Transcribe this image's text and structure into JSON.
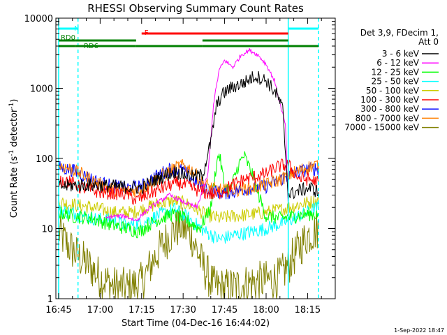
{
  "chart_data": {
    "type": "line",
    "title": "RHESSI Observing Summary Count Rates",
    "xlabel": "Start Time (04-Dec-16 16:44:02)",
    "ylabel": "Count Rate (s⁻¹ detector⁻¹)",
    "ylabel_parts": {
      "base": "Count Rate (s",
      "exp1": "-1",
      "mid": " detector",
      "exp2": "-1",
      "end": ")"
    },
    "y_scale": "log",
    "ylim": [
      1,
      10000
    ],
    "xlim": [
      "16:44",
      "18:25"
    ],
    "x_ticks": [
      "16:45",
      "17:00",
      "17:15",
      "17:30",
      "17:45",
      "18:00",
      "18:15"
    ],
    "y_ticks": [
      "1",
      "10",
      "100",
      "1000",
      "10000"
    ],
    "legend_header": [
      "Det 3,9, FDecim 1,",
      "Att 0"
    ],
    "legend_position": "right",
    "timestamp": "1-Sep-2022 18:47",
    "series": [
      {
        "name": "3 - 6 keV",
        "color": "#000000",
        "points": [
          [
            "16:45",
            40
          ],
          [
            "16:55",
            42
          ],
          [
            "17:05",
            40
          ],
          [
            "17:15",
            38
          ],
          [
            "17:20",
            50
          ],
          [
            "17:27",
            65
          ],
          [
            "17:33",
            55
          ],
          [
            "17:37",
            58
          ],
          [
            "17:40",
            170
          ],
          [
            "17:42",
            550
          ],
          [
            "17:44",
            800
          ],
          [
            "17:47",
            1000
          ],
          [
            "17:52",
            1200
          ],
          [
            "17:56",
            1500
          ],
          [
            "18:00",
            1300
          ],
          [
            "18:04",
            800
          ],
          [
            "18:06",
            500
          ],
          [
            "18:08",
            30
          ],
          [
            "18:12",
            35
          ],
          [
            "18:16",
            38
          ],
          [
            "18:19",
            33
          ]
        ]
      },
      {
        "name": "6 - 12 keV",
        "color": "#ff00ff",
        "points": [
          [
            "17:02",
            14
          ],
          [
            "17:05",
            15
          ],
          [
            "17:09",
            15
          ],
          [
            "17:13",
            13
          ],
          [
            "17:18",
            20
          ],
          [
            "17:25",
            30
          ],
          [
            "17:30",
            24
          ],
          [
            "17:35",
            20
          ],
          [
            "17:39",
            60
          ],
          [
            "17:41",
            600
          ],
          [
            "17:43",
            1800
          ],
          [
            "17:45",
            2500
          ],
          [
            "17:48",
            2000
          ],
          [
            "17:51",
            3000
          ],
          [
            "17:54",
            3500
          ],
          [
            "17:57",
            3000
          ],
          [
            "18:00",
            2200
          ],
          [
            "18:03",
            1300
          ],
          [
            "18:05",
            600
          ],
          [
            "18:07",
            300
          ],
          [
            "18:08",
            20
          ]
        ]
      },
      {
        "name": "12 - 25 keV",
        "color": "#00ff00",
        "points": [
          [
            "16:45",
            17
          ],
          [
            "16:50",
            15
          ],
          [
            "16:57",
            14
          ],
          [
            "17:05",
            11
          ],
          [
            "17:10",
            10
          ],
          [
            "17:14",
            9
          ],
          [
            "17:20",
            13
          ],
          [
            "17:26",
            16
          ],
          [
            "17:30",
            14
          ],
          [
            "17:36",
            10
          ],
          [
            "17:40",
            20
          ],
          [
            "17:42",
            80
          ],
          [
            "17:43",
            120
          ],
          [
            "17:45",
            40
          ],
          [
            "17:47",
            35
          ],
          [
            "17:50",
            80
          ],
          [
            "17:52",
            110
          ],
          [
            "17:55",
            60
          ],
          [
            "17:58",
            25
          ],
          [
            "18:00",
            15
          ],
          [
            "18:05",
            14
          ],
          [
            "18:10",
            15
          ],
          [
            "18:15",
            16
          ],
          [
            "18:19",
            16
          ]
        ]
      },
      {
        "name": "25 - 50 keV",
        "color": "#00ffff",
        "points": [
          [
            "16:45",
            18
          ],
          [
            "16:50",
            17
          ],
          [
            "16:57",
            14
          ],
          [
            "17:05",
            13
          ],
          [
            "17:10",
            11
          ],
          [
            "17:15",
            12
          ],
          [
            "17:22",
            16
          ],
          [
            "17:27",
            19
          ],
          [
            "17:32",
            14
          ],
          [
            "17:38",
            9
          ],
          [
            "17:43",
            7
          ],
          [
            "17:48",
            8
          ],
          [
            "17:55",
            9
          ],
          [
            "18:00",
            10
          ],
          [
            "18:06",
            12
          ],
          [
            "18:12",
            15
          ],
          [
            "18:16",
            18
          ],
          [
            "18:19",
            20
          ]
        ]
      },
      {
        "name": "50 - 100 keV",
        "color": "#cccc00",
        "points": [
          [
            "16:45",
            24
          ],
          [
            "16:50",
            22
          ],
          [
            "16:57",
            20
          ],
          [
            "17:05",
            17
          ],
          [
            "17:12",
            17
          ],
          [
            "17:20",
            22
          ],
          [
            "17:27",
            25
          ],
          [
            "17:32",
            22
          ],
          [
            "17:38",
            16
          ],
          [
            "17:43",
            14
          ],
          [
            "17:48",
            15
          ],
          [
            "17:55",
            16
          ],
          [
            "18:00",
            17
          ],
          [
            "18:06",
            19
          ],
          [
            "18:12",
            22
          ],
          [
            "18:16",
            24
          ],
          [
            "18:19",
            25
          ]
        ]
      },
      {
        "name": "100 - 300 keV",
        "color": "#ff0000",
        "points": [
          [
            "16:45",
            50
          ],
          [
            "16:48",
            48
          ],
          [
            "16:52",
            40
          ],
          [
            "16:56",
            36
          ],
          [
            "17:00",
            33
          ],
          [
            "17:05",
            32
          ],
          [
            "17:10",
            31
          ],
          [
            "17:13",
            25
          ],
          [
            "17:18",
            32
          ],
          [
            "17:24",
            40
          ],
          [
            "17:28",
            45
          ],
          [
            "17:32",
            40
          ],
          [
            "17:37",
            33
          ],
          [
            "17:42",
            30
          ],
          [
            "17:48",
            42
          ],
          [
            "17:52",
            50
          ],
          [
            "17:56",
            55
          ],
          [
            "18:00",
            60
          ],
          [
            "18:03",
            72
          ],
          [
            "18:06",
            80
          ],
          [
            "18:08",
            80
          ],
          [
            "18:12",
            52
          ],
          [
            "18:16",
            50
          ],
          [
            "18:19",
            45
          ]
        ]
      },
      {
        "name": "300 - 800 keV",
        "color": "#0000ff",
        "points": [
          [
            "16:45",
            75
          ],
          [
            "16:50",
            68
          ],
          [
            "16:55",
            55
          ],
          [
            "17:00",
            45
          ],
          [
            "17:05",
            40
          ],
          [
            "17:10",
            38
          ],
          [
            "17:15",
            40
          ],
          [
            "17:20",
            55
          ],
          [
            "17:25",
            70
          ],
          [
            "17:30",
            68
          ],
          [
            "17:35",
            45
          ],
          [
            "17:40",
            35
          ],
          [
            "17:45",
            32
          ],
          [
            "17:50",
            35
          ],
          [
            "17:55",
            38
          ],
          [
            "18:00",
            40
          ],
          [
            "18:05",
            50
          ],
          [
            "18:10",
            60
          ],
          [
            "18:15",
            70
          ],
          [
            "18:19",
            72
          ]
        ]
      },
      {
        "name": "800 - 7000 keV",
        "color": "#ff8000",
        "points": [
          [
            "16:45",
            80
          ],
          [
            "16:50",
            70
          ],
          [
            "16:55",
            55
          ],
          [
            "17:00",
            42
          ],
          [
            "17:05",
            36
          ],
          [
            "17:10",
            34
          ],
          [
            "17:15",
            36
          ],
          [
            "17:20",
            50
          ],
          [
            "17:25",
            65
          ],
          [
            "17:29",
            80
          ],
          [
            "17:33",
            70
          ],
          [
            "17:37",
            45
          ],
          [
            "17:41",
            37
          ],
          [
            "17:45",
            35
          ],
          [
            "17:50",
            36
          ],
          [
            "17:55",
            38
          ],
          [
            "18:00",
            42
          ],
          [
            "18:05",
            50
          ],
          [
            "18:10",
            63
          ],
          [
            "18:15",
            75
          ],
          [
            "18:19",
            82
          ]
        ]
      },
      {
        "name": "7000 - 15000 keV",
        "color": "#808000",
        "points": [
          [
            "16:45",
            9
          ],
          [
            "16:48",
            6
          ],
          [
            "16:52",
            4
          ],
          [
            "16:56",
            3
          ],
          [
            "17:00",
            2
          ],
          [
            "17:05",
            1.5
          ],
          [
            "17:10",
            1.4
          ],
          [
            "17:15",
            1.7
          ],
          [
            "17:20",
            4
          ],
          [
            "17:25",
            8
          ],
          [
            "17:29",
            11
          ],
          [
            "17:33",
            8
          ],
          [
            "17:37",
            3
          ],
          [
            "17:41",
            1.5
          ],
          [
            "17:45",
            1.4
          ],
          [
            "17:50",
            1.5
          ],
          [
            "17:55",
            1.7
          ],
          [
            "18:00",
            1.8
          ],
          [
            "18:05",
            2
          ],
          [
            "18:10",
            4
          ],
          [
            "18:15",
            8
          ],
          [
            "18:19",
            10
          ]
        ]
      }
    ],
    "status_bars": [
      {
        "label": "N",
        "color": "#00ffff",
        "start": "16:45",
        "end": "16:52",
        "row": "top"
      },
      {
        "label": "",
        "color": "#00ffff",
        "start": "18:08",
        "end": "18:19",
        "row": "top"
      },
      {
        "label": "F",
        "color": "#ff0000",
        "start": "17:15",
        "end": "18:08",
        "row": "flare"
      },
      {
        "label": "RD0",
        "color": "#008000",
        "start": "16:45",
        "end": "16:51",
        "row": "upper"
      },
      {
        "label": "",
        "color": "#008000",
        "start": "16:51",
        "end": "17:13",
        "row": "upper"
      },
      {
        "label": "",
        "color": "#008000",
        "start": "17:37",
        "end": "18:08",
        "row": "upper"
      },
      {
        "label": "RD6",
        "color": "#008000",
        "start": "16:45",
        "end": "16:51",
        "row": "lower"
      },
      {
        "label": "",
        "color": "#008000",
        "start": "16:51",
        "end": "17:13",
        "row": "lower"
      },
      {
        "label": "",
        "color": "#008000",
        "start": "17:13",
        "end": "17:37",
        "row": "lower"
      },
      {
        "label": "",
        "color": "#008000",
        "start": "17:37",
        "end": "18:08",
        "row": "lower"
      },
      {
        "label": "",
        "color": "#008000",
        "start": "18:08",
        "end": "18:19",
        "row": "lower"
      }
    ],
    "vertical_markers": [
      {
        "time": "16:45",
        "color": "#00ffff",
        "style": "solid"
      },
      {
        "time": "16:52",
        "color": "#00ffff",
        "style": "dashed"
      },
      {
        "time": "18:08",
        "color": "#00ffff",
        "style": "solid"
      },
      {
        "time": "18:19",
        "color": "#00ffff",
        "style": "dashed"
      }
    ]
  }
}
